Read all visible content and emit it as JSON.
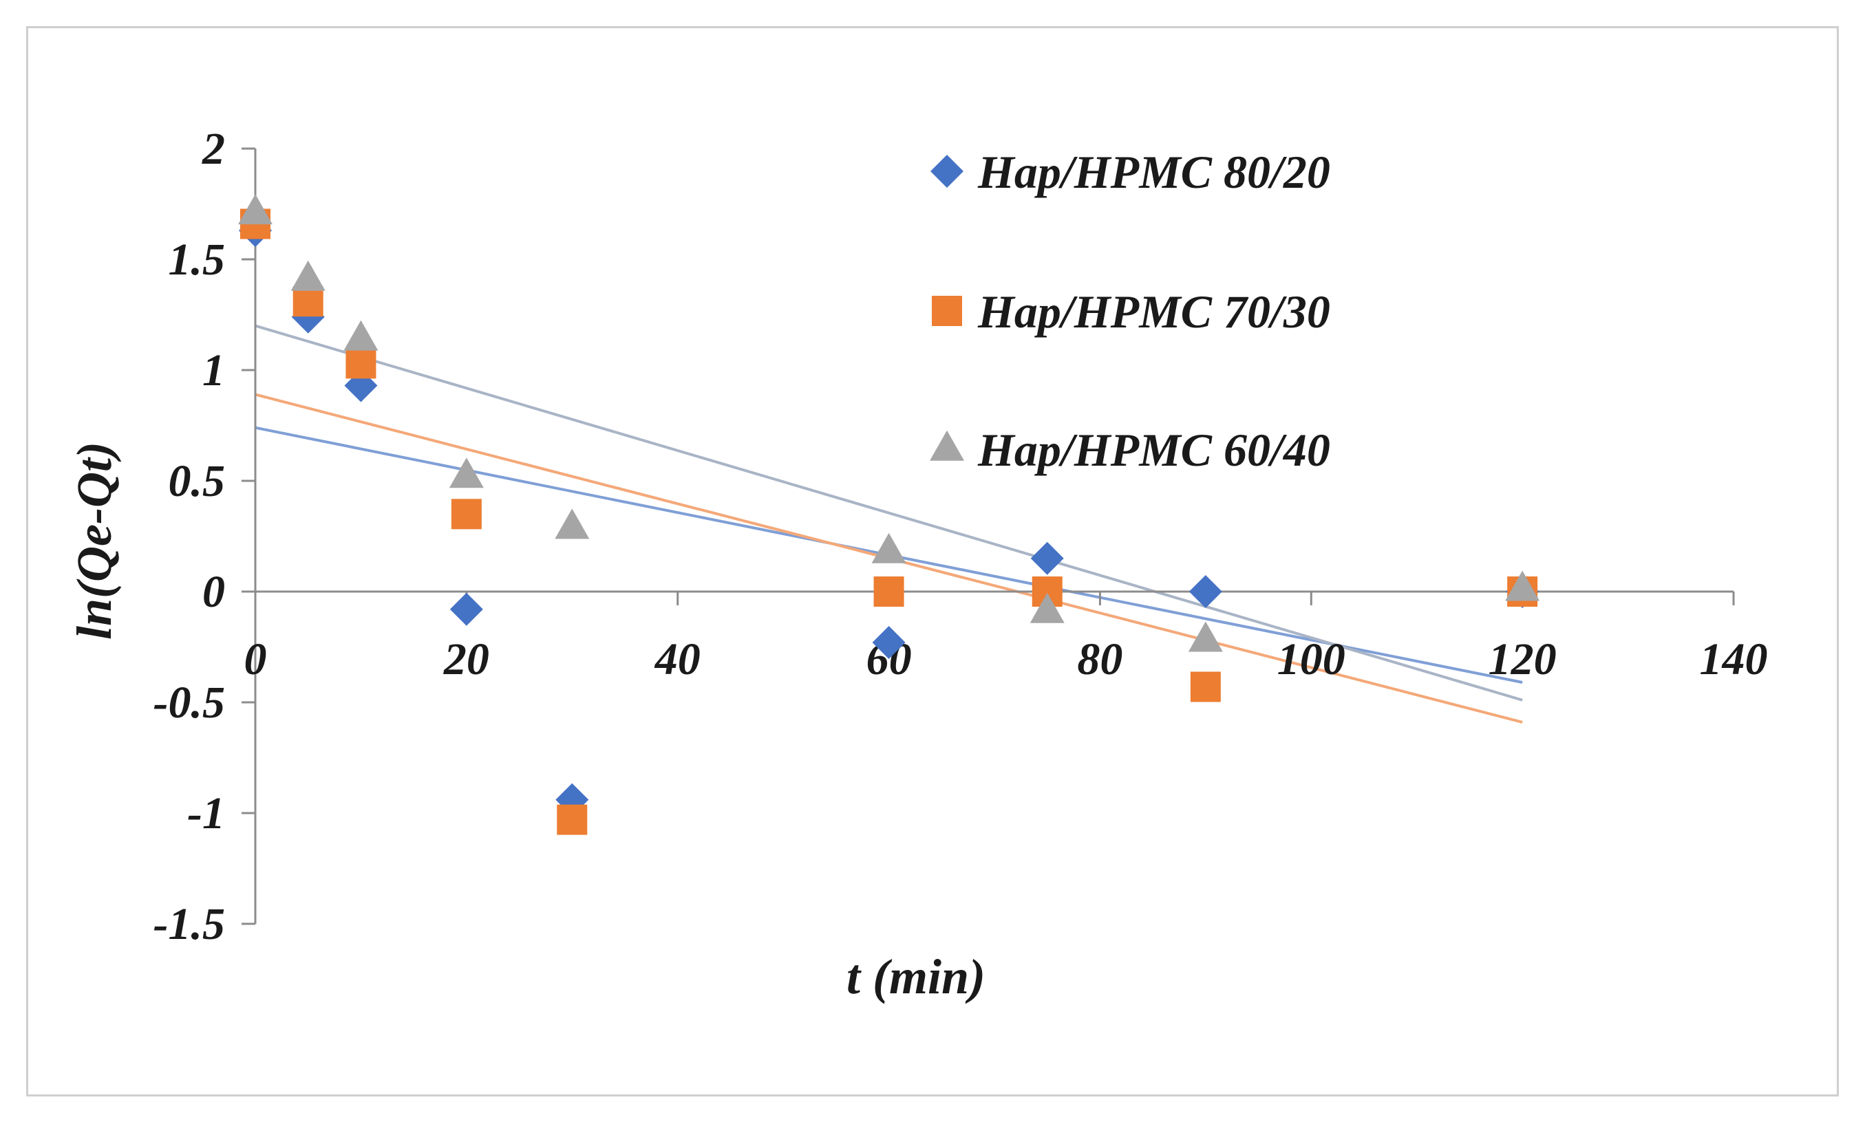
{
  "chart_data": {
    "type": "scatter",
    "title": "",
    "xlabel": "t (min)",
    "ylabel": "ln(Qe-Qt)",
    "xlim": [
      0,
      140
    ],
    "ylim": [
      -1.5,
      2
    ],
    "xticks": [
      0,
      20,
      40,
      60,
      80,
      100,
      120,
      140
    ],
    "yticks": [
      -1.5,
      -1,
      -0.5,
      0,
      0.5,
      1,
      1.5,
      2
    ],
    "xtick_labels": [
      "0",
      "20",
      "40",
      "60",
      "80",
      "100",
      "120",
      "140"
    ],
    "ytick_labels": [
      "-1.5",
      "-1",
      "-0.5",
      "0",
      "0.5",
      "1",
      "1.5",
      "2"
    ],
    "grid": false,
    "legend_position": "top-right",
    "series": [
      {
        "name": "Hap/HPMC 80/20",
        "marker": "diamond",
        "color": "#4472C4",
        "trend_color": "#7F9FD6",
        "x": [
          0,
          5,
          10,
          20,
          30,
          60,
          75,
          90,
          120
        ],
        "y": [
          1.63,
          1.24,
          0.93,
          -0.08,
          -0.94,
          -0.23,
          0.15,
          0.0,
          0.0
        ],
        "trendline": {
          "x": [
            0,
            120
          ],
          "y": [
            0.74,
            -0.41
          ]
        }
      },
      {
        "name": "Hap/HPMC 70/30",
        "marker": "square",
        "color": "#ED7D31",
        "trend_color": "#F4A878",
        "x": [
          0,
          5,
          10,
          20,
          30,
          60,
          75,
          90,
          120
        ],
        "y": [
          1.66,
          1.31,
          1.03,
          0.35,
          -1.03,
          0.0,
          0.0,
          -0.43,
          0.0
        ],
        "trendline": {
          "x": [
            0,
            120
          ],
          "y": [
            0.89,
            -0.59
          ]
        }
      },
      {
        "name": "Hap/HPMC 60/40",
        "marker": "triangle",
        "color": "#A5A5A5",
        "trend_color": "#A9B4C6",
        "x": [
          0,
          5,
          10,
          20,
          30,
          60,
          75,
          90,
          120
        ],
        "y": [
          1.71,
          1.41,
          1.14,
          0.52,
          0.29,
          0.18,
          -0.09,
          -0.22,
          0.01
        ],
        "trendline": {
          "x": [
            0,
            120
          ],
          "y": [
            1.2,
            -0.49
          ]
        }
      }
    ]
  }
}
